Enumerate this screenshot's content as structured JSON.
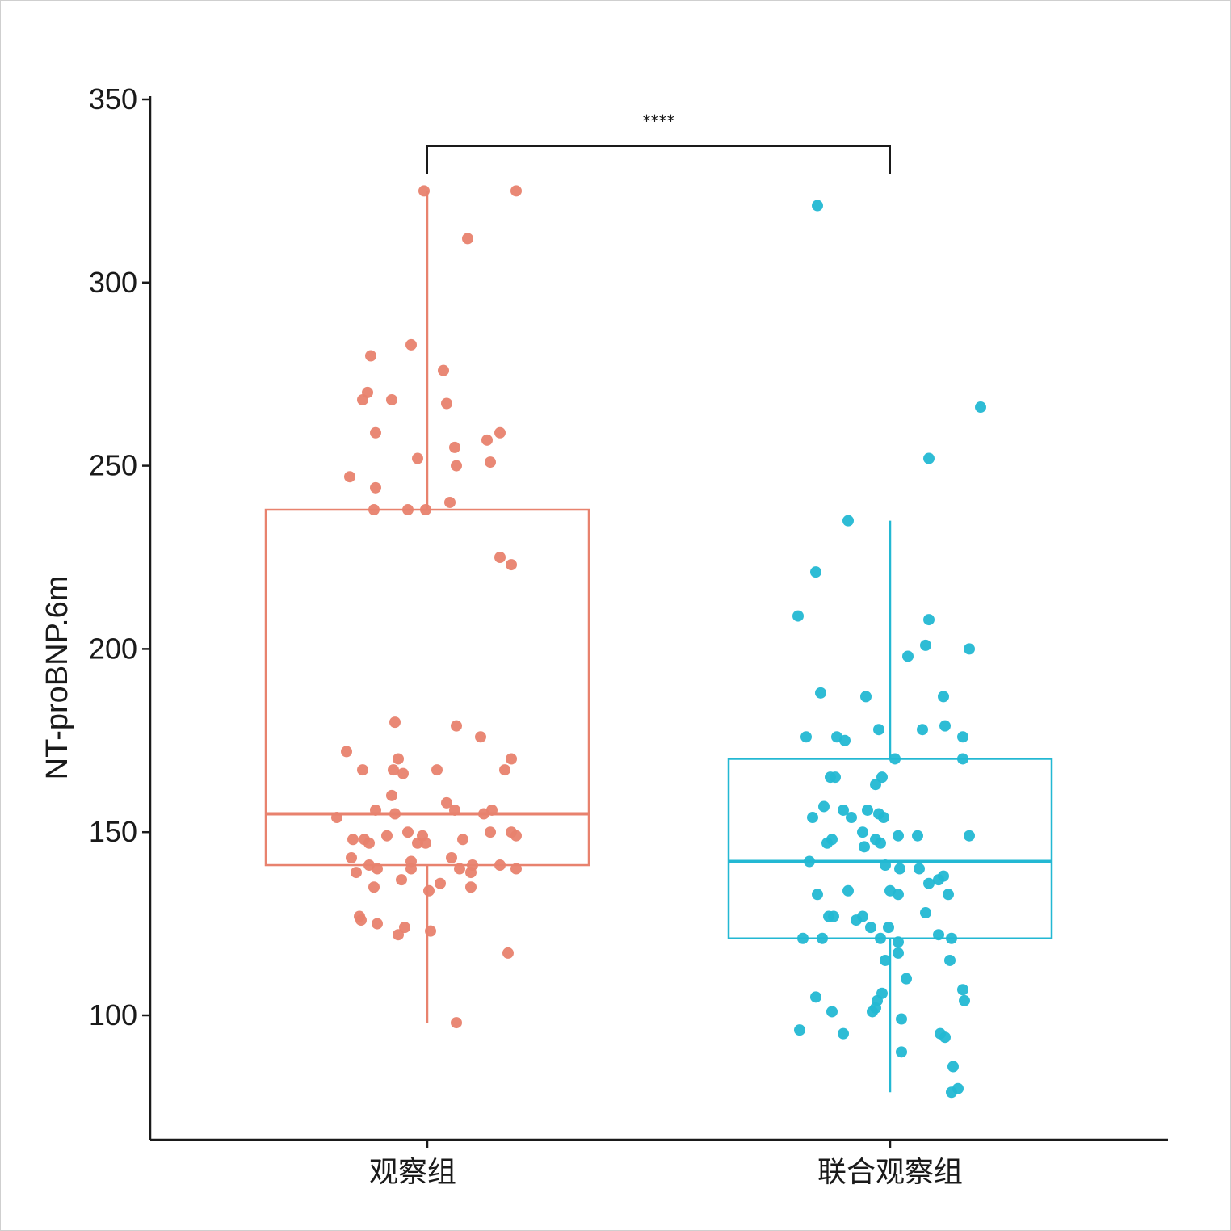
{
  "chart_data": {
    "type": "box",
    "ylabel": "NT-proBNP.6m",
    "xlabel": "",
    "ylim": [
      67,
      350
    ],
    "yticks": [
      100,
      150,
      200,
      250,
      300,
      350
    ],
    "categories": [
      "观察组",
      "联合观察组"
    ],
    "significance": {
      "label": "****",
      "between": [
        "观察组",
        "联合观察组"
      ]
    },
    "grid": false,
    "legend": "none",
    "series": [
      {
        "category": "观察组",
        "color": "#e8826e",
        "box": {
          "whisker_low": 98,
          "q1": 141,
          "median": 155,
          "q3": 238,
          "whisker_high": 325
        },
        "points": [
          {
            "j": -0.02,
            "y": 325
          },
          {
            "j": 0.55,
            "y": 325
          },
          {
            "j": 0.25,
            "y": 312
          },
          {
            "j": -0.1,
            "y": 283
          },
          {
            "j": -0.35,
            "y": 280
          },
          {
            "j": 0.1,
            "y": 276
          },
          {
            "j": -0.37,
            "y": 270
          },
          {
            "j": -0.4,
            "y": 268
          },
          {
            "j": -0.22,
            "y": 268
          },
          {
            "j": 0.12,
            "y": 267
          },
          {
            "j": -0.32,
            "y": 259
          },
          {
            "j": 0.45,
            "y": 259
          },
          {
            "j": 0.37,
            "y": 257
          },
          {
            "j": 0.17,
            "y": 255
          },
          {
            "j": -0.06,
            "y": 252
          },
          {
            "j": 0.39,
            "y": 251
          },
          {
            "j": 0.18,
            "y": 250
          },
          {
            "j": -0.48,
            "y": 247
          },
          {
            "j": -0.32,
            "y": 244
          },
          {
            "j": 0.14,
            "y": 240
          },
          {
            "j": -0.12,
            "y": 238
          },
          {
            "j": -0.01,
            "y": 238
          },
          {
            "j": -0.33,
            "y": 238
          },
          {
            "j": 0.45,
            "y": 225
          },
          {
            "j": 0.52,
            "y": 223
          },
          {
            "j": -0.2,
            "y": 180
          },
          {
            "j": 0.18,
            "y": 179
          },
          {
            "j": 0.33,
            "y": 176
          },
          {
            "j": -0.5,
            "y": 172
          },
          {
            "j": -0.18,
            "y": 170
          },
          {
            "j": 0.52,
            "y": 170
          },
          {
            "j": -0.4,
            "y": 167
          },
          {
            "j": -0.21,
            "y": 167
          },
          {
            "j": -0.15,
            "y": 166
          },
          {
            "j": 0.06,
            "y": 167
          },
          {
            "j": 0.48,
            "y": 167
          },
          {
            "j": -0.22,
            "y": 160
          },
          {
            "j": 0.12,
            "y": 158
          },
          {
            "j": -0.32,
            "y": 156
          },
          {
            "j": 0.17,
            "y": 156
          },
          {
            "j": 0.4,
            "y": 156
          },
          {
            "j": -0.2,
            "y": 155
          },
          {
            "j": 0.35,
            "y": 155
          },
          {
            "j": -0.56,
            "y": 154
          },
          {
            "j": -0.12,
            "y": 150
          },
          {
            "j": 0.39,
            "y": 150
          },
          {
            "j": 0.52,
            "y": 150
          },
          {
            "j": -0.03,
            "y": 149
          },
          {
            "j": 0.55,
            "y": 149
          },
          {
            "j": -0.25,
            "y": 149
          },
          {
            "j": -0.46,
            "y": 148
          },
          {
            "j": -0.39,
            "y": 148
          },
          {
            "j": -0.36,
            "y": 147
          },
          {
            "j": 0.22,
            "y": 148
          },
          {
            "j": -0.06,
            "y": 147
          },
          {
            "j": -0.01,
            "y": 147
          },
          {
            "j": -0.47,
            "y": 143
          },
          {
            "j": 0.15,
            "y": 143
          },
          {
            "j": -0.1,
            "y": 142
          },
          {
            "j": 0.28,
            "y": 141
          },
          {
            "j": 0.45,
            "y": 141
          },
          {
            "j": -0.36,
            "y": 141
          },
          {
            "j": -0.1,
            "y": 140
          },
          {
            "j": 0.2,
            "y": 140
          },
          {
            "j": -0.31,
            "y": 140
          },
          {
            "j": 0.55,
            "y": 140
          },
          {
            "j": -0.44,
            "y": 139
          },
          {
            "j": 0.27,
            "y": 139
          },
          {
            "j": -0.16,
            "y": 137
          },
          {
            "j": 0.08,
            "y": 136
          },
          {
            "j": -0.33,
            "y": 135
          },
          {
            "j": 0.27,
            "y": 135
          },
          {
            "j": 0.01,
            "y": 134
          },
          {
            "j": -0.42,
            "y": 127
          },
          {
            "j": -0.41,
            "y": 126
          },
          {
            "j": -0.31,
            "y": 125
          },
          {
            "j": -0.14,
            "y": 124
          },
          {
            "j": -0.18,
            "y": 122
          },
          {
            "j": 0.02,
            "y": 123
          },
          {
            "j": 0.5,
            "y": 117
          },
          {
            "j": 0.18,
            "y": 98
          }
        ]
      },
      {
        "category": "联合观察组",
        "color": "#23b8d3",
        "box": {
          "whisker_low": 79,
          "q1": 121,
          "median": 142,
          "q3": 170,
          "whisker_high": 235
        },
        "points": [
          {
            "j": -0.45,
            "y": 321
          },
          {
            "j": 0.56,
            "y": 266
          },
          {
            "j": 0.24,
            "y": 252
          },
          {
            "j": -0.26,
            "y": 235
          },
          {
            "j": -0.46,
            "y": 221
          },
          {
            "j": -0.57,
            "y": 209
          },
          {
            "j": 0.24,
            "y": 208
          },
          {
            "j": 0.22,
            "y": 201
          },
          {
            "j": 0.49,
            "y": 200
          },
          {
            "j": 0.11,
            "y": 198
          },
          {
            "j": -0.43,
            "y": 188
          },
          {
            "j": -0.15,
            "y": 187
          },
          {
            "j": 0.33,
            "y": 187
          },
          {
            "j": -0.07,
            "y": 178
          },
          {
            "j": 0.2,
            "y": 178
          },
          {
            "j": 0.34,
            "y": 179
          },
          {
            "j": -0.52,
            "y": 176
          },
          {
            "j": -0.33,
            "y": 176
          },
          {
            "j": -0.28,
            "y": 175
          },
          {
            "j": 0.45,
            "y": 176
          },
          {
            "j": 0.03,
            "y": 170
          },
          {
            "j": 0.45,
            "y": 170
          },
          {
            "j": -0.37,
            "y": 165
          },
          {
            "j": -0.34,
            "y": 165
          },
          {
            "j": -0.05,
            "y": 165
          },
          {
            "j": -0.09,
            "y": 163
          },
          {
            "j": -0.41,
            "y": 157
          },
          {
            "j": -0.29,
            "y": 156
          },
          {
            "j": -0.14,
            "y": 156
          },
          {
            "j": -0.07,
            "y": 155
          },
          {
            "j": -0.24,
            "y": 154
          },
          {
            "j": -0.04,
            "y": 154
          },
          {
            "j": -0.48,
            "y": 154
          },
          {
            "j": 0.05,
            "y": 149
          },
          {
            "j": 0.17,
            "y": 149
          },
          {
            "j": 0.49,
            "y": 149
          },
          {
            "j": -0.17,
            "y": 150
          },
          {
            "j": -0.09,
            "y": 148
          },
          {
            "j": -0.36,
            "y": 148
          },
          {
            "j": -0.39,
            "y": 147
          },
          {
            "j": -0.06,
            "y": 147
          },
          {
            "j": -0.16,
            "y": 146
          },
          {
            "j": -0.5,
            "y": 142
          },
          {
            "j": -0.03,
            "y": 141
          },
          {
            "j": 0.06,
            "y": 140
          },
          {
            "j": 0.18,
            "y": 140
          },
          {
            "j": 0.33,
            "y": 138
          },
          {
            "j": 0.3,
            "y": 137
          },
          {
            "j": 0.24,
            "y": 136
          },
          {
            "j": -0.26,
            "y": 134
          },
          {
            "j": 0.0,
            "y": 134
          },
          {
            "j": 0.36,
            "y": 133
          },
          {
            "j": -0.45,
            "y": 133
          },
          {
            "j": 0.05,
            "y": 133
          },
          {
            "j": -0.17,
            "y": 127
          },
          {
            "j": 0.22,
            "y": 128
          },
          {
            "j": -0.38,
            "y": 127
          },
          {
            "j": -0.35,
            "y": 127
          },
          {
            "j": -0.21,
            "y": 126
          },
          {
            "j": -0.12,
            "y": 124
          },
          {
            "j": -0.01,
            "y": 124
          },
          {
            "j": 0.3,
            "y": 122
          },
          {
            "j": 0.38,
            "y": 121
          },
          {
            "j": -0.54,
            "y": 121
          },
          {
            "j": -0.42,
            "y": 121
          },
          {
            "j": -0.06,
            "y": 121
          },
          {
            "j": 0.05,
            "y": 120
          },
          {
            "j": 0.05,
            "y": 117
          },
          {
            "j": -0.03,
            "y": 115
          },
          {
            "j": 0.37,
            "y": 115
          },
          {
            "j": 0.1,
            "y": 110
          },
          {
            "j": -0.05,
            "y": 106
          },
          {
            "j": 0.45,
            "y": 107
          },
          {
            "j": -0.46,
            "y": 105
          },
          {
            "j": -0.08,
            "y": 104
          },
          {
            "j": 0.46,
            "y": 104
          },
          {
            "j": -0.09,
            "y": 102
          },
          {
            "j": -0.11,
            "y": 101
          },
          {
            "j": -0.36,
            "y": 101
          },
          {
            "j": 0.07,
            "y": 99
          },
          {
            "j": -0.56,
            "y": 96
          },
          {
            "j": -0.29,
            "y": 95
          },
          {
            "j": 0.31,
            "y": 95
          },
          {
            "j": 0.34,
            "y": 94
          },
          {
            "j": 0.07,
            "y": 90
          },
          {
            "j": 0.39,
            "y": 86
          },
          {
            "j": 0.38,
            "y": 79
          },
          {
            "j": 0.42,
            "y": 80
          }
        ]
      }
    ]
  }
}
